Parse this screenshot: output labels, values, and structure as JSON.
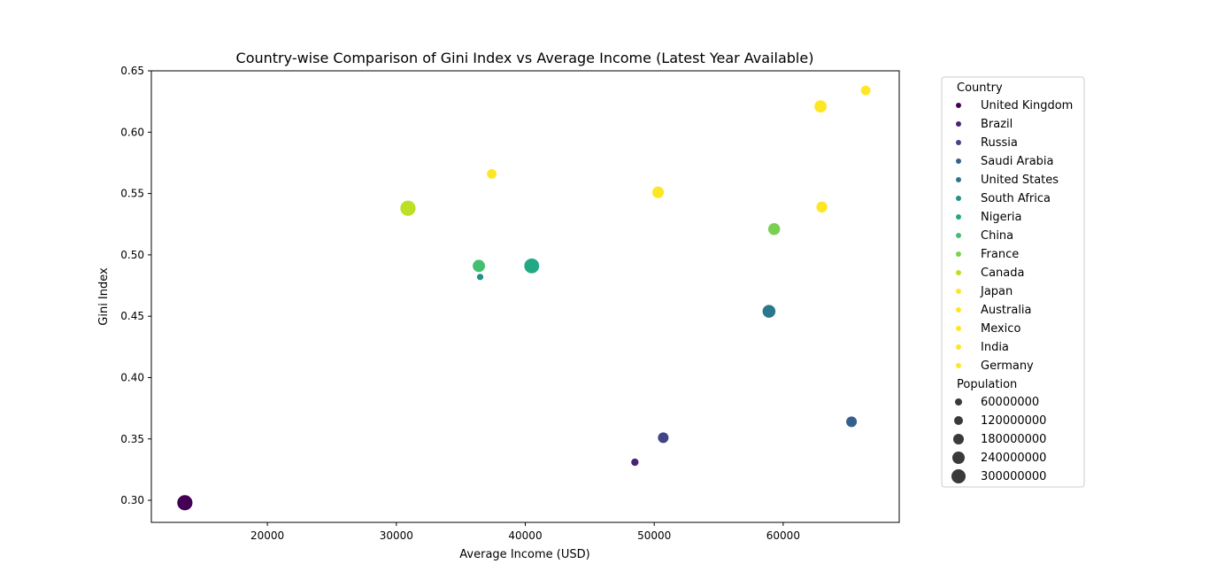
{
  "chart_data": {
    "type": "scatter",
    "title": "Country-wise Comparison of Gini Index vs Average Income (Latest Year Available)",
    "xlabel": "Average Income (USD)",
    "ylabel": "Gini Index",
    "xlim": [
      11000,
      69000
    ],
    "ylim": [
      0.282,
      0.65
    ],
    "x_ticks": [
      "20000",
      "30000",
      "40000",
      "50000",
      "60000"
    ],
    "x_tick_values": [
      20000,
      30000,
      40000,
      50000,
      60000
    ],
    "y_ticks": [
      "0.30",
      "0.35",
      "0.40",
      "0.45",
      "0.50",
      "0.55",
      "0.60",
      "0.65"
    ],
    "y_tick_values": [
      0.3,
      0.35,
      0.4,
      0.45,
      0.5,
      0.55,
      0.6,
      0.65
    ],
    "grid": false,
    "legend_position": "outside-right",
    "hue_title": "Country",
    "size_title": "Population",
    "series": [
      {
        "name": "United Kingdom",
        "color": "#440154",
        "points": [
          {
            "x": 13600,
            "y": 0.298,
            "population": 300000000
          }
        ]
      },
      {
        "name": "Brazil",
        "color": "#482475",
        "points": [
          {
            "x": 48500,
            "y": 0.331,
            "population": 60000000
          }
        ]
      },
      {
        "name": "Russia",
        "color": "#414487",
        "points": [
          {
            "x": 50700,
            "y": 0.351,
            "population": 160000000
          }
        ]
      },
      {
        "name": "Saudi Arabia",
        "color": "#355f8d",
        "points": [
          {
            "x": 65300,
            "y": 0.364,
            "population": 160000000
          }
        ]
      },
      {
        "name": "United States",
        "color": "#2a788e",
        "points": [
          {
            "x": 58900,
            "y": 0.454,
            "population": 230000000
          }
        ]
      },
      {
        "name": "South Africa",
        "color": "#21918c",
        "points": [
          {
            "x": 36500,
            "y": 0.482,
            "population": 30000000
          }
        ]
      },
      {
        "name": "Nigeria",
        "color": "#22a884",
        "points": [
          {
            "x": 40500,
            "y": 0.491,
            "population": 290000000
          }
        ]
      },
      {
        "name": "China",
        "color": "#44bf70",
        "points": [
          {
            "x": 36400,
            "y": 0.491,
            "population": 210000000
          }
        ]
      },
      {
        "name": "France",
        "color": "#7ad151",
        "points": [
          {
            "x": 59300,
            "y": 0.521,
            "population": 200000000
          }
        ]
      },
      {
        "name": "Canada",
        "color": "#bddf26",
        "points": [
          {
            "x": 30900,
            "y": 0.538,
            "population": 300000000
          }
        ]
      },
      {
        "name": "Japan",
        "color": "#fde725",
        "points": [
          {
            "x": 63000,
            "y": 0.539,
            "population": 170000000
          }
        ]
      },
      {
        "name": "Australia",
        "color": "#fde725",
        "points": [
          {
            "x": 50300,
            "y": 0.551,
            "population": 190000000
          }
        ]
      },
      {
        "name": "Mexico",
        "color": "#fde725",
        "points": [
          {
            "x": 37400,
            "y": 0.566,
            "population": 130000000
          }
        ]
      },
      {
        "name": "India",
        "color": "#fde725",
        "points": [
          {
            "x": 62900,
            "y": 0.621,
            "population": 210000000
          }
        ]
      },
      {
        "name": "Germany",
        "color": "#fde725",
        "points": [
          {
            "x": 66400,
            "y": 0.634,
            "population": 130000000
          }
        ]
      }
    ],
    "size_legend": [
      {
        "label": "60000000",
        "value": 60000000
      },
      {
        "label": "120000000",
        "value": 120000000
      },
      {
        "label": "180000000",
        "value": 180000000
      },
      {
        "label": "240000000",
        "value": 240000000
      },
      {
        "label": "300000000",
        "value": 300000000
      }
    ]
  }
}
